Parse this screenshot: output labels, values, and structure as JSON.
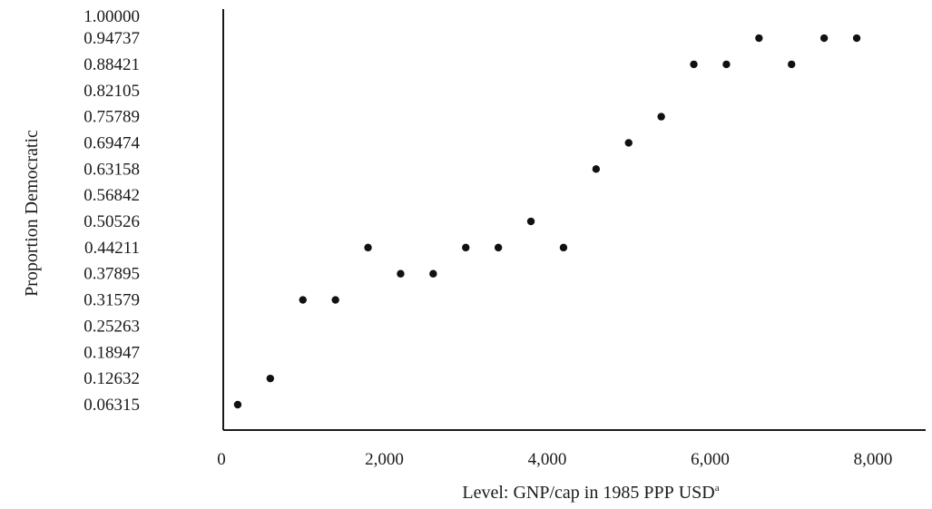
{
  "chart_data": {
    "type": "scatter",
    "title": "",
    "xlabel": "Level: GNP/cap in 1985 PPP USD",
    "xlabel_parts": {
      "prefix": "Level: ",
      "gnp": "GNP",
      "cap": "/cap in 1985 ",
      "ppp": "PPP",
      "space": " ",
      "usd": "USD",
      "footnote": "a"
    },
    "ylabel": "Proportion Democratic",
    "xlim": [
      0,
      8600
    ],
    "ylim": [
      0,
      1.0
    ],
    "x_ticks": [
      {
        "value": 0,
        "label": "0"
      },
      {
        "value": 2000,
        "label": "2,000"
      },
      {
        "value": 4000,
        "label": "4,000"
      },
      {
        "value": 6000,
        "label": "6,000"
      },
      {
        "value": 8000,
        "label": "8,000"
      }
    ],
    "y_ticks": [
      {
        "value": 1.0,
        "label": "1.00000"
      },
      {
        "value": 0.94737,
        "label": "0.94737"
      },
      {
        "value": 0.88421,
        "label": "0.88421"
      },
      {
        "value": 0.82105,
        "label": "0.82105"
      },
      {
        "value": 0.75789,
        "label": "0.75789"
      },
      {
        "value": 0.69474,
        "label": "0.69474"
      },
      {
        "value": 0.63158,
        "label": "0.63158"
      },
      {
        "value": 0.56842,
        "label": "0.56842"
      },
      {
        "value": 0.50526,
        "label": "0.50526"
      },
      {
        "value": 0.44211,
        "label": "0.44211"
      },
      {
        "value": 0.37895,
        "label": "0.37895"
      },
      {
        "value": 0.31579,
        "label": "0.31579"
      },
      {
        "value": 0.25263,
        "label": "0.25263"
      },
      {
        "value": 0.18947,
        "label": "0.18947"
      },
      {
        "value": 0.12632,
        "label": "0.12632"
      },
      {
        "value": 0.06315,
        "label": "0.06315"
      }
    ],
    "grid": false,
    "series": [
      {
        "points": [
          {
            "x": 200,
            "y": 0.06315
          },
          {
            "x": 600,
            "y": 0.12632
          },
          {
            "x": 1000,
            "y": 0.31579
          },
          {
            "x": 1400,
            "y": 0.31579
          },
          {
            "x": 1800,
            "y": 0.44211
          },
          {
            "x": 2200,
            "y": 0.37895
          },
          {
            "x": 2600,
            "y": 0.37895
          },
          {
            "x": 3000,
            "y": 0.44211
          },
          {
            "x": 3400,
            "y": 0.44211
          },
          {
            "x": 3800,
            "y": 0.50526
          },
          {
            "x": 4200,
            "y": 0.44211
          },
          {
            "x": 4600,
            "y": 0.63158
          },
          {
            "x": 5000,
            "y": 0.69474
          },
          {
            "x": 5400,
            "y": 0.75789
          },
          {
            "x": 5800,
            "y": 0.88421
          },
          {
            "x": 6200,
            "y": 0.88421
          },
          {
            "x": 6600,
            "y": 0.94737
          },
          {
            "x": 7000,
            "y": 0.88421
          },
          {
            "x": 7400,
            "y": 0.94737
          },
          {
            "x": 7800,
            "y": 0.94737
          }
        ]
      }
    ]
  }
}
